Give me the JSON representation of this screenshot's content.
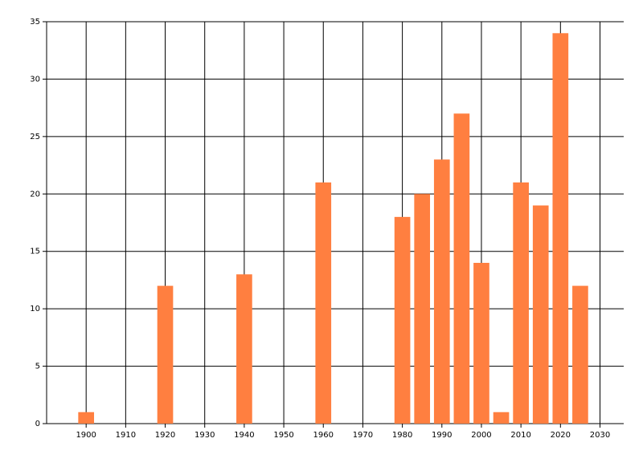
{
  "chart_data": {
    "type": "bar",
    "x": [
      1900,
      1920,
      1940,
      1960,
      1980,
      1985,
      1990,
      1995,
      2000,
      2005,
      2010,
      2015,
      2020,
      2025
    ],
    "values": [
      1,
      12,
      13,
      21,
      18,
      20,
      23,
      27,
      14,
      1,
      21,
      19,
      34,
      12
    ],
    "color": "#ff7f40",
    "xlim": [
      1890,
      2036
    ],
    "xticks": [
      1900,
      1910,
      1920,
      1930,
      1940,
      1950,
      1960,
      1970,
      1980,
      1990,
      2000,
      2010,
      2020,
      2030
    ],
    "ylim": [
      0,
      35
    ],
    "yticks": [
      0,
      5,
      10,
      15,
      20,
      25,
      30,
      35
    ],
    "grid": true
  }
}
